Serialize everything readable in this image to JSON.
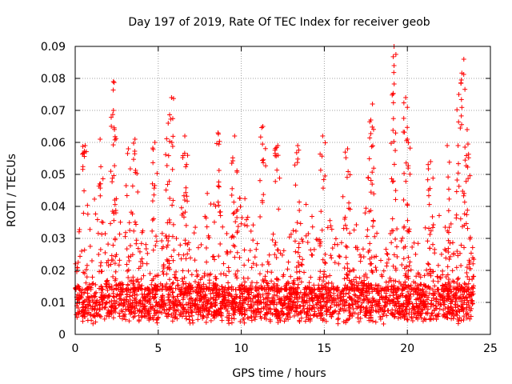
{
  "chart_data": {
    "type": "scatter",
    "title": "Day 197 of 2019, Rate Of TEC Index for receiver geob",
    "xlabel": "GPS time / hours",
    "ylabel": "ROTI / TECUs",
    "xlim": [
      0,
      25
    ],
    "ylim": [
      0,
      0.09
    ],
    "x_ticks": [
      0,
      5,
      10,
      15,
      20,
      25
    ],
    "x_tick_labels": [
      "0",
      "5",
      "10",
      "15",
      "20",
      "25"
    ],
    "y_ticks": [
      0,
      0.01,
      0.02,
      0.03,
      0.04,
      0.05,
      0.06,
      0.07,
      0.08,
      0.09
    ],
    "y_tick_labels": [
      "0",
      "0.01",
      "0.02",
      "0.03",
      "0.04",
      "0.05",
      "0.06",
      "0.07",
      "0.08",
      "0.09"
    ],
    "grid": true,
    "marker": "plus",
    "color": "#ff0000",
    "data_range_x": [
      0,
      24
    ],
    "baseline_band": [
      0.005,
      0.014
    ],
    "notable_peaks": [
      {
        "x": 0.6,
        "y": 0.059
      },
      {
        "x": 1.5,
        "y": 0.061
      },
      {
        "x": 2.3,
        "y": 0.079
      },
      {
        "x": 2.3,
        "y": 0.07
      },
      {
        "x": 3.2,
        "y": 0.058
      },
      {
        "x": 3.6,
        "y": 0.061
      },
      {
        "x": 4.8,
        "y": 0.06
      },
      {
        "x": 5.8,
        "y": 0.074
      },
      {
        "x": 5.6,
        "y": 0.066
      },
      {
        "x": 6.6,
        "y": 0.062
      },
      {
        "x": 8.6,
        "y": 0.063
      },
      {
        "x": 9.6,
        "y": 0.062
      },
      {
        "x": 11.3,
        "y": 0.065
      },
      {
        "x": 12.2,
        "y": 0.059
      },
      {
        "x": 13.4,
        "y": 0.059
      },
      {
        "x": 14.9,
        "y": 0.062
      },
      {
        "x": 16.4,
        "y": 0.058
      },
      {
        "x": 17.9,
        "y": 0.072
      },
      {
        "x": 17.8,
        "y": 0.067
      },
      {
        "x": 19.2,
        "y": 0.09
      },
      {
        "x": 19.2,
        "y": 0.084
      },
      {
        "x": 19.9,
        "y": 0.074
      },
      {
        "x": 20.0,
        "y": 0.061
      },
      {
        "x": 21.4,
        "y": 0.054
      },
      {
        "x": 22.4,
        "y": 0.059
      },
      {
        "x": 23.1,
        "y": 0.075
      },
      {
        "x": 23.4,
        "y": 0.086
      },
      {
        "x": 23.6,
        "y": 0.064
      }
    ]
  }
}
